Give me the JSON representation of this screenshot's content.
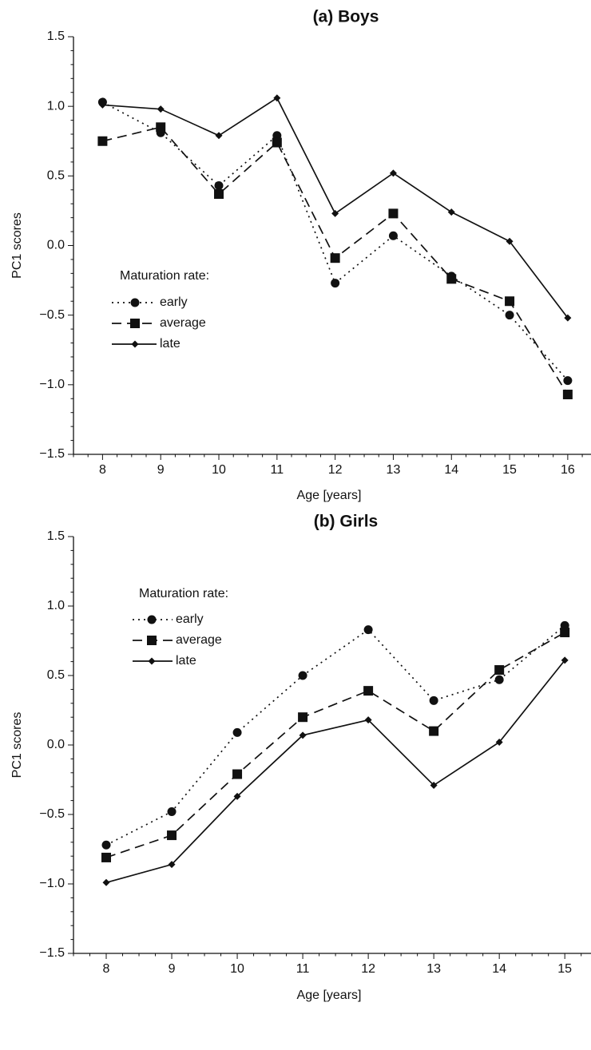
{
  "chart_data": [
    {
      "type": "line",
      "title": "(a)  Boys",
      "xlabel": "Age [years]",
      "ylabel": "PC1 scores",
      "x": [
        8,
        9,
        10,
        11,
        12,
        13,
        14,
        15,
        16
      ],
      "xlim": [
        7.5,
        16.4
      ],
      "ylim": [
        -1.5,
        1.5
      ],
      "yticks": [
        "1.5",
        "1.0",
        "0.5",
        "0.0",
        "−0.5",
        "−1.0",
        "−1.5"
      ],
      "ytick_values": [
        1.5,
        1.0,
        0.5,
        0.0,
        -0.5,
        -1.0,
        -1.5
      ],
      "grid": false,
      "legend": {
        "title": "Maturation rate:",
        "placement": "middle-left"
      },
      "series": [
        {
          "name": "early",
          "style": "dotted",
          "marker": "circle",
          "values": [
            1.03,
            0.81,
            0.43,
            0.79,
            -0.27,
            0.07,
            -0.22,
            -0.5,
            -0.97
          ]
        },
        {
          "name": "average",
          "style": "dashed",
          "marker": "square",
          "values": [
            0.75,
            0.85,
            0.37,
            0.74,
            -0.09,
            0.23,
            -0.24,
            -0.4,
            -1.07
          ]
        },
        {
          "name": "late",
          "style": "solid",
          "marker": "diamond",
          "values": [
            1.01,
            0.98,
            0.79,
            1.06,
            0.23,
            0.52,
            0.24,
            0.03,
            -0.52
          ]
        }
      ]
    },
    {
      "type": "line",
      "title": "(b)  Girls",
      "xlabel": "Age [years]",
      "ylabel": "PC1 scores",
      "x": [
        8,
        9,
        10,
        11,
        12,
        13,
        14,
        15
      ],
      "xlim": [
        7.5,
        15.4
      ],
      "ylim": [
        -1.5,
        1.5
      ],
      "yticks": [
        "1.5",
        "1.0",
        "0.5",
        "0.0",
        "−0.5",
        "−1.0",
        "−1.5"
      ],
      "ytick_values": [
        1.5,
        1.0,
        0.5,
        0.0,
        -0.5,
        -1.0,
        -1.5
      ],
      "grid": false,
      "legend": {
        "title": "Maturation rate:",
        "placement": "top-left"
      },
      "series": [
        {
          "name": "early",
          "style": "dotted",
          "marker": "circle",
          "values": [
            -0.72,
            -0.48,
            0.09,
            0.5,
            0.83,
            0.32,
            0.47,
            0.86
          ]
        },
        {
          "name": "average",
          "style": "dashed",
          "marker": "square",
          "values": [
            -0.81,
            -0.65,
            -0.21,
            0.2,
            0.39,
            0.1,
            0.54,
            0.81
          ]
        },
        {
          "name": "late",
          "style": "solid",
          "marker": "diamond",
          "values": [
            -0.99,
            -0.86,
            -0.37,
            0.07,
            0.18,
            -0.29,
            0.02,
            0.61
          ]
        }
      ]
    }
  ]
}
